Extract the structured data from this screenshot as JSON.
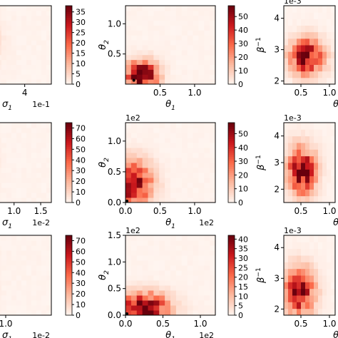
{
  "colormap": {
    "low": "#fff5f0",
    "mid1": "#fcbba1",
    "mid2": "#fb6a4a",
    "mid3": "#cb181d",
    "high": "#67000d"
  },
  "chart_data": [
    {
      "type": "heatmap",
      "row": 0,
      "col": 0,
      "cut_left": true,
      "xlabel": "σ₁",
      "ylabel": "",
      "xticks": [
        {
          "v": 4,
          "label": "4"
        }
      ],
      "x_offset_label": "1e-1",
      "x_offset_pos": "bottom-right",
      "yticks": [],
      "xlim": [
        2.0,
        5.0
      ],
      "ylim": [
        0,
        1
      ],
      "grid": [
        16,
        16
      ],
      "blob": {
        "cx": 0.05,
        "cy": 0.55,
        "sx": 0.18,
        "sy": 0.2,
        "peak": 0.22
      },
      "colorbar": {
        "vmin": 0,
        "vmax": 38,
        "ticks": [
          0,
          5,
          10,
          15,
          20,
          25,
          30,
          35
        ]
      }
    },
    {
      "type": "heatmap",
      "row": 0,
      "col": 1,
      "xlabel": "θ₁",
      "ylabel": "θ₂",
      "xticks": [
        {
          "v": 0.5,
          "label": "0.5"
        },
        {
          "v": 1.0,
          "label": "1.0"
        }
      ],
      "yticks": [
        {
          "v": 0.5,
          "label": "0.5"
        },
        {
          "v": 1.0,
          "label": "1.0"
        }
      ],
      "xlim": [
        0.0,
        1.3
      ],
      "ylim": [
        0.0,
        1.3
      ],
      "grid": [
        16,
        16
      ],
      "blob": {
        "cx": 0.18,
        "cy": 0.12,
        "sx": 0.12,
        "sy": 0.12,
        "peak": 1.0
      },
      "marker": {
        "x": 0.1,
        "y": 0.04
      },
      "colorbar": {
        "vmin": 0,
        "vmax": 58,
        "ticks": [
          0,
          10,
          20,
          30,
          40,
          50
        ]
      }
    },
    {
      "type": "heatmap",
      "row": 0,
      "col": 2,
      "cut_right": true,
      "xlabel": "θ_S",
      "ylabel": "β⁻¹",
      "xticks": [
        {
          "v": 0.5,
          "label": "0.5"
        },
        {
          "v": 1.0,
          "label": "1.0"
        }
      ],
      "yticks": [
        {
          "v": 2,
          "label": "2"
        },
        {
          "v": 3,
          "label": "3"
        },
        {
          "v": 4,
          "label": "4"
        }
      ],
      "y_offset_label": "1e-3",
      "xlim": [
        0.2,
        1.1
      ],
      "ylim": [
        1.9,
        4.4
      ],
      "grid": [
        12,
        12
      ],
      "blob": {
        "cx": 0.45,
        "cy": 0.35,
        "sx": 0.22,
        "sy": 0.15,
        "peak": 0.9
      },
      "colorbar": null
    },
    {
      "type": "heatmap",
      "row": 1,
      "col": 0,
      "cut_left": true,
      "xlabel": "σ₁",
      "ylabel": "",
      "xticks": [
        {
          "v": 1.0,
          "label": "1.0"
        },
        {
          "v": 1.5,
          "label": "1.5"
        }
      ],
      "x_offset_label": "1e-2",
      "x_offset_pos": "bottom-right",
      "yticks": [],
      "xlim": [
        0.2,
        1.7
      ],
      "ylim": [
        0,
        1
      ],
      "grid": [
        16,
        16
      ],
      "blob": {
        "cx": 0.1,
        "cy": 0.5,
        "sx": 0.15,
        "sy": 0.2,
        "peak": 0.08
      },
      "colorbar": {
        "vmin": 0,
        "vmax": 75,
        "ticks": [
          0,
          10,
          20,
          30,
          40,
          50,
          60,
          70
        ]
      }
    },
    {
      "type": "heatmap",
      "row": 1,
      "col": 1,
      "xlabel": "θ₁",
      "ylabel": "θ₂",
      "xticks": [
        {
          "v": 0.0,
          "label": "0.0"
        },
        {
          "v": 0.5,
          "label": "0.5"
        },
        {
          "v": 1.0,
          "label": "1.0"
        }
      ],
      "x_offset_label": "1e2",
      "x_offset_pos": "bottom-right",
      "yticks": [
        {
          "v": 0.0,
          "label": "0.0"
        },
        {
          "v": 0.5,
          "label": "0.5"
        },
        {
          "v": 1.0,
          "label": "1.0"
        }
      ],
      "y_offset_label": "1e2",
      "xlim": [
        0.0,
        1.3
      ],
      "ylim": [
        0.0,
        1.3
      ],
      "grid": [
        16,
        16
      ],
      "blob": {
        "cx": 0.06,
        "cy": 0.25,
        "sx": 0.15,
        "sy": 0.18,
        "peak": 1.0
      },
      "marker": {
        "x": 0.0,
        "y": 0.0
      },
      "colorbar": {
        "vmin": 0,
        "vmax": 58,
        "ticks": [
          0,
          10,
          20,
          30,
          40,
          50
        ]
      }
    },
    {
      "type": "heatmap",
      "row": 1,
      "col": 2,
      "cut_right": true,
      "xlabel": "θ_S",
      "ylabel": "β⁻¹",
      "xticks": [
        {
          "v": 0.5,
          "label": "0.5"
        },
        {
          "v": 1.0,
          "label": "1.0"
        }
      ],
      "yticks": [
        {
          "v": 2,
          "label": "2"
        },
        {
          "v": 3,
          "label": "3"
        },
        {
          "v": 4,
          "label": "4"
        }
      ],
      "y_offset_label": "1e-3",
      "xlim": [
        0.2,
        1.1
      ],
      "ylim": [
        1.5,
        4.5
      ],
      "grid": [
        12,
        12
      ],
      "blob": {
        "cx": 0.35,
        "cy": 0.4,
        "sx": 0.18,
        "sy": 0.2,
        "peak": 0.95
      },
      "colorbar": null
    },
    {
      "type": "heatmap",
      "row": 2,
      "col": 0,
      "cut_left": true,
      "xlabel": "σ₁",
      "ylabel": "",
      "xticks": [
        {
          "v": 1.0,
          "label": "1.0"
        }
      ],
      "x_offset_label": "1e-2",
      "x_offset_pos": "bottom-right",
      "yticks": [],
      "xlim": [
        0.4,
        1.8
      ],
      "ylim": [
        0,
        1
      ],
      "grid": [
        16,
        16
      ],
      "blob": {
        "cx": 0.1,
        "cy": 0.5,
        "sx": 0.15,
        "sy": 0.2,
        "peak": 0.06
      },
      "colorbar": {
        "vmin": 0,
        "vmax": 75,
        "ticks": [
          0,
          10,
          20,
          30,
          40,
          50,
          60,
          70
        ]
      }
    },
    {
      "type": "heatmap",
      "row": 2,
      "col": 1,
      "xlabel": "θ₁",
      "ylabel": "θ₂",
      "xticks": [
        {
          "v": 0.0,
          "label": "0.0"
        },
        {
          "v": 0.5,
          "label": "0.5"
        },
        {
          "v": 1.0,
          "label": "1.0"
        }
      ],
      "x_offset_label": "1e2",
      "x_offset_pos": "bottom-right",
      "yticks": [
        {
          "v": 0.0,
          "label": "0.0"
        },
        {
          "v": 0.5,
          "label": "0.5"
        },
        {
          "v": 1.0,
          "label": "1.0"
        },
        {
          "v": 1.5,
          "label": "1.5"
        }
      ],
      "y_offset_label": "1e2",
      "xlim": [
        0.0,
        1.2
      ],
      "ylim": [
        0.0,
        1.5
      ],
      "grid": [
        16,
        16
      ],
      "blob": {
        "cx": 0.18,
        "cy": 0.1,
        "sx": 0.2,
        "sy": 0.12,
        "peak": 1.0
      },
      "marker": {
        "x": 0.0,
        "y": 0.0
      },
      "colorbar": {
        "vmin": 0,
        "vmax": 42,
        "ticks": [
          0,
          5,
          10,
          15,
          20,
          25,
          30,
          35,
          40
        ]
      }
    },
    {
      "type": "heatmap",
      "row": 2,
      "col": 2,
      "cut_right": true,
      "xlabel": "θ_S",
      "ylabel": "β⁻¹",
      "xticks": [
        {
          "v": 0.5,
          "label": "0.5"
        },
        {
          "v": 1.0,
          "label": "1.0"
        }
      ],
      "yticks": [
        {
          "v": 2,
          "label": "2"
        },
        {
          "v": 3,
          "label": "3"
        },
        {
          "v": 4,
          "label": "4"
        }
      ],
      "y_offset_label": "1e-3",
      "xlim": [
        0.2,
        1.1
      ],
      "ylim": [
        1.8,
        4.4
      ],
      "grid": [
        12,
        12
      ],
      "blob": {
        "cx": 0.3,
        "cy": 0.3,
        "sx": 0.2,
        "sy": 0.2,
        "peak": 0.85
      },
      "colorbar": null
    }
  ]
}
